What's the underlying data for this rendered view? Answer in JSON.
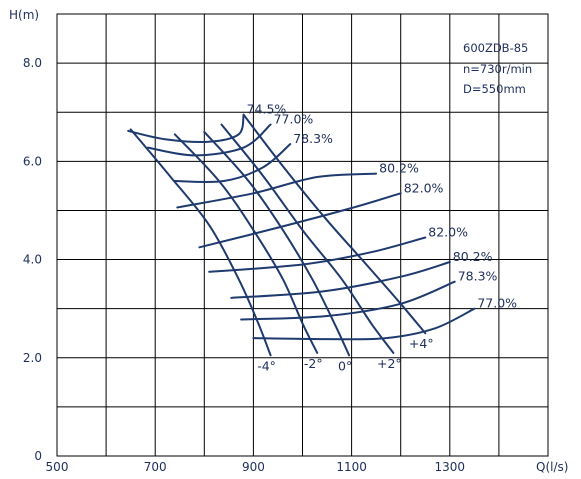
{
  "chart_data": {
    "type": "line",
    "model": "600ZDB-85",
    "speed": "n=730r/min",
    "diameter": "D=550mm",
    "ylabel": "H(m)",
    "xlabel": "Q(l/s)",
    "xlim": [
      500,
      1500
    ],
    "ylim": [
      0,
      9
    ],
    "x_ticks": [
      {
        "v": 500,
        "label": "500"
      },
      {
        "v": 700,
        "label": "700"
      },
      {
        "v": 900,
        "label": "900"
      },
      {
        "v": 1100,
        "label": "1100"
      },
      {
        "v": 1300,
        "label": "1300"
      }
    ],
    "y_ticks": [
      {
        "v": 0,
        "label": "0"
      },
      {
        "v": 2,
        "label": "2.0"
      },
      {
        "v": 4,
        "label": "4.0"
      },
      {
        "v": 6,
        "label": "6.0"
      },
      {
        "v": 8,
        "label": "8.0"
      }
    ],
    "grid": true,
    "blade_angle_curves": [
      {
        "label": "-4°",
        "points": [
          [
            650,
            6.65
          ],
          [
            730,
            5.7
          ],
          [
            810,
            4.7
          ],
          [
            870,
            3.6
          ],
          [
            910,
            2.7
          ],
          [
            935,
            2.05
          ]
        ]
      },
      {
        "label": "-2°",
        "points": [
          [
            740,
            6.55
          ],
          [
            830,
            5.6
          ],
          [
            900,
            4.6
          ],
          [
            960,
            3.6
          ],
          [
            1000,
            2.7
          ],
          [
            1030,
            2.1
          ]
        ]
      },
      {
        "label": "0°",
        "points": [
          [
            800,
            6.6
          ],
          [
            890,
            5.6
          ],
          [
            960,
            4.6
          ],
          [
            1020,
            3.6
          ],
          [
            1065,
            2.7
          ],
          [
            1095,
            2.05
          ]
        ]
      },
      {
        "label": "+2°",
        "points": [
          [
            835,
            6.75
          ],
          [
            920,
            5.7
          ],
          [
            1000,
            4.6
          ],
          [
            1080,
            3.6
          ],
          [
            1140,
            2.7
          ],
          [
            1185,
            2.1
          ]
        ]
      },
      {
        "label": "+4°",
        "points": [
          [
            880,
            6.95
          ],
          [
            960,
            5.9
          ],
          [
            1050,
            4.8
          ],
          [
            1130,
            3.9
          ],
          [
            1200,
            3.1
          ],
          [
            1250,
            2.5
          ]
        ]
      }
    ],
    "efficiency_curves": [
      {
        "label": "74.5%",
        "points": [
          [
            645,
            6.62
          ],
          [
            720,
            6.45
          ],
          [
            810,
            6.4
          ],
          [
            870,
            6.55
          ],
          [
            880,
            6.95
          ]
        ]
      },
      {
        "label": "77.0%",
        "points": [
          [
            685,
            6.28
          ],
          [
            780,
            6.12
          ],
          [
            880,
            6.28
          ],
          [
            935,
            6.75
          ]
        ]
      },
      {
        "label": "78.3%",
        "points": [
          [
            740,
            5.6
          ],
          [
            840,
            5.6
          ],
          [
            920,
            5.88
          ],
          [
            975,
            6.35
          ]
        ]
      },
      {
        "label": "80.2%",
        "points": [
          [
            745,
            5.06
          ],
          [
            900,
            5.35
          ],
          [
            1030,
            5.68
          ],
          [
            1150,
            5.75
          ]
        ]
      },
      {
        "label": "82.0%",
        "points": [
          [
            790,
            4.25
          ],
          [
            950,
            4.65
          ],
          [
            1100,
            5.05
          ],
          [
            1200,
            5.35
          ]
        ]
      },
      {
        "label": "82.0%",
        "points": [
          [
            810,
            3.75
          ],
          [
            1000,
            3.9
          ],
          [
            1140,
            4.15
          ],
          [
            1250,
            4.45
          ]
        ]
      },
      {
        "label": "80.2%",
        "points": [
          [
            855,
            3.22
          ],
          [
            1040,
            3.35
          ],
          [
            1200,
            3.65
          ],
          [
            1300,
            3.95
          ]
        ]
      },
      {
        "label": "78.3%",
        "points": [
          [
            875,
            2.78
          ],
          [
            1050,
            2.85
          ],
          [
            1200,
            3.1
          ],
          [
            1310,
            3.55
          ]
        ]
      },
      {
        "label": "77.0%",
        "points": [
          [
            900,
            2.4
          ],
          [
            1050,
            2.38
          ],
          [
            1170,
            2.4
          ],
          [
            1270,
            2.6
          ],
          [
            1350,
            3.0
          ]
        ]
      }
    ]
  }
}
